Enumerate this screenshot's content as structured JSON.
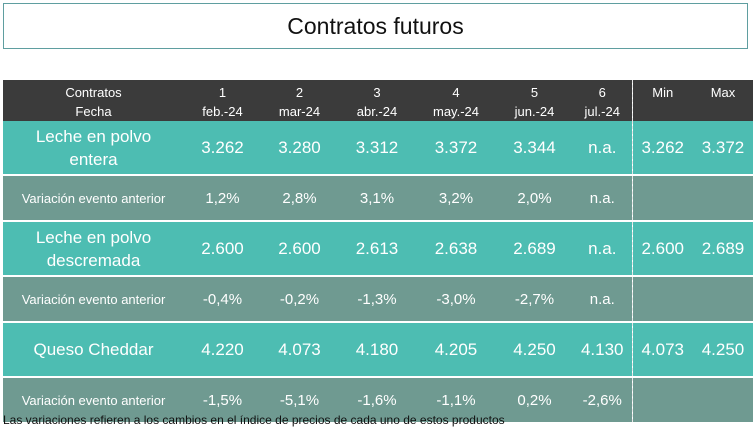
{
  "title": "Contratos futuros",
  "header": {
    "contracts_label": "Contratos",
    "date_label": "Fecha",
    "columns": [
      {
        "num": "1",
        "date": "feb.-24"
      },
      {
        "num": "2",
        "date": "mar-24"
      },
      {
        "num": "3",
        "date": "abr.-24"
      },
      {
        "num": "4",
        "date": "may.-24"
      },
      {
        "num": "5",
        "date": "jun.-24"
      },
      {
        "num": "6",
        "date": "jul.-24"
      }
    ],
    "min_label": "Min",
    "max_label": "Max"
  },
  "rows": [
    {
      "name_line1": "Leche en polvo",
      "name_line2": "entera",
      "values": [
        "3.262",
        "3.280",
        "3.312",
        "3.372",
        "3.344",
        "n.a."
      ],
      "min": "3.262",
      "max": "3.372",
      "variation_label": "Variación evento anterior",
      "variations": [
        "1,2%",
        "2,8%",
        "3,1%",
        "3,2%",
        "2,0%",
        "n.a."
      ]
    },
    {
      "name_line1": "Leche en polvo",
      "name_line2": "descremada",
      "values": [
        "2.600",
        "2.600",
        "2.613",
        "2.638",
        "2.689",
        "n.a."
      ],
      "min": "2.600",
      "max": "2.689",
      "variation_label": "Variación evento anterior",
      "variations": [
        "-0,4%",
        "-0,2%",
        "-1,3%",
        "-3,0%",
        "-2,7%",
        "n.a."
      ]
    },
    {
      "name_line1": "Queso Cheddar",
      "name_line2": "",
      "values": [
        "4.220",
        "4.073",
        "4.180",
        "4.205",
        "4.250",
        "4.130"
      ],
      "min": "4.073",
      "max": "4.250",
      "variation_label": "Variación evento anterior",
      "variations": [
        "-1,5%",
        "-5,1%",
        "-1,6%",
        "-1,1%",
        "0,2%",
        "-2,6%"
      ]
    }
  ],
  "footnote": "Las variaciones refieren a los cambios en el índice de precios de cada uno de estos productos",
  "colors": {
    "header_bg": "#3b3b3b",
    "product_row_bg": "#4dbdb2",
    "variation_row_bg": "#6f9a91"
  }
}
